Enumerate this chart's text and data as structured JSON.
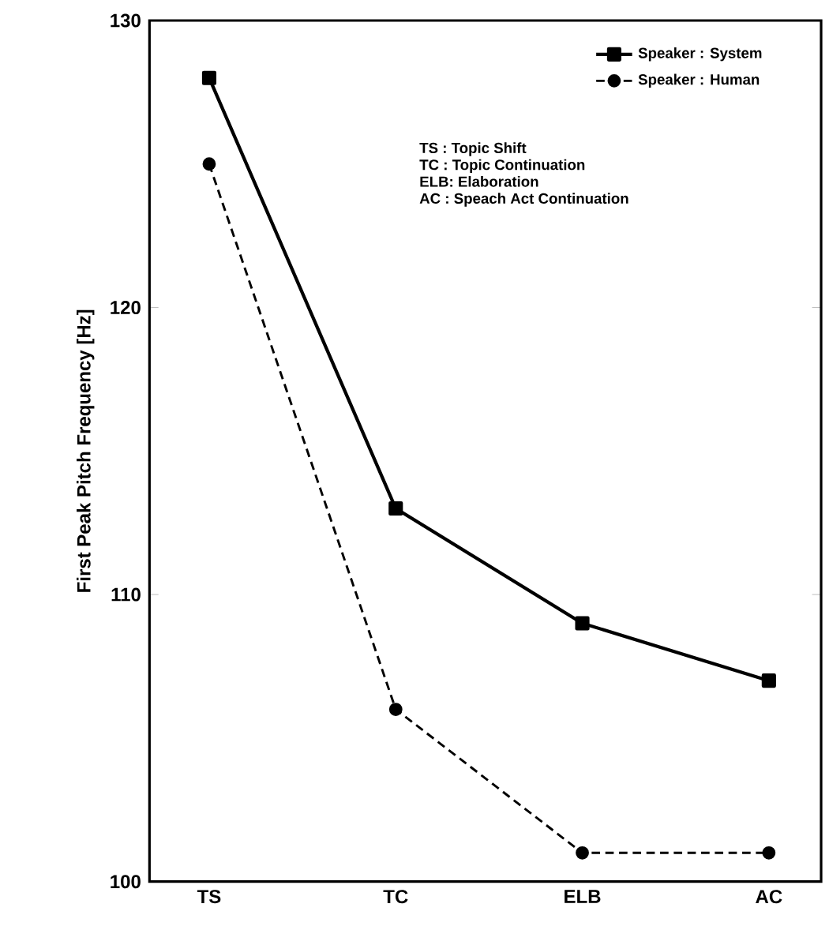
{
  "chart_data": {
    "type": "line",
    "ylabel": "First Peak Pitch Frequency [Hz]",
    "categories": [
      "TS",
      "TC",
      "ELB",
      "AC"
    ],
    "series": [
      {
        "name": "Speaker : System",
        "color": "#000000",
        "marker": "square",
        "line_style": "solid",
        "values": [
          128,
          113,
          109,
          107
        ]
      },
      {
        "name": "Speaker : Human",
        "color": "#000000",
        "marker": "circle",
        "line_style": "dashed",
        "values": [
          125,
          106,
          101,
          101
        ]
      }
    ],
    "ylim": [
      100,
      130
    ],
    "yticks": [
      100,
      110,
      120,
      130
    ],
    "legend": "top right",
    "grid": false,
    "annotations": [
      "TS : Topic Shift",
      "TC : Topic Continuation",
      "ELB: Elaboration",
      "AC : Speach Act Continuation"
    ]
  }
}
